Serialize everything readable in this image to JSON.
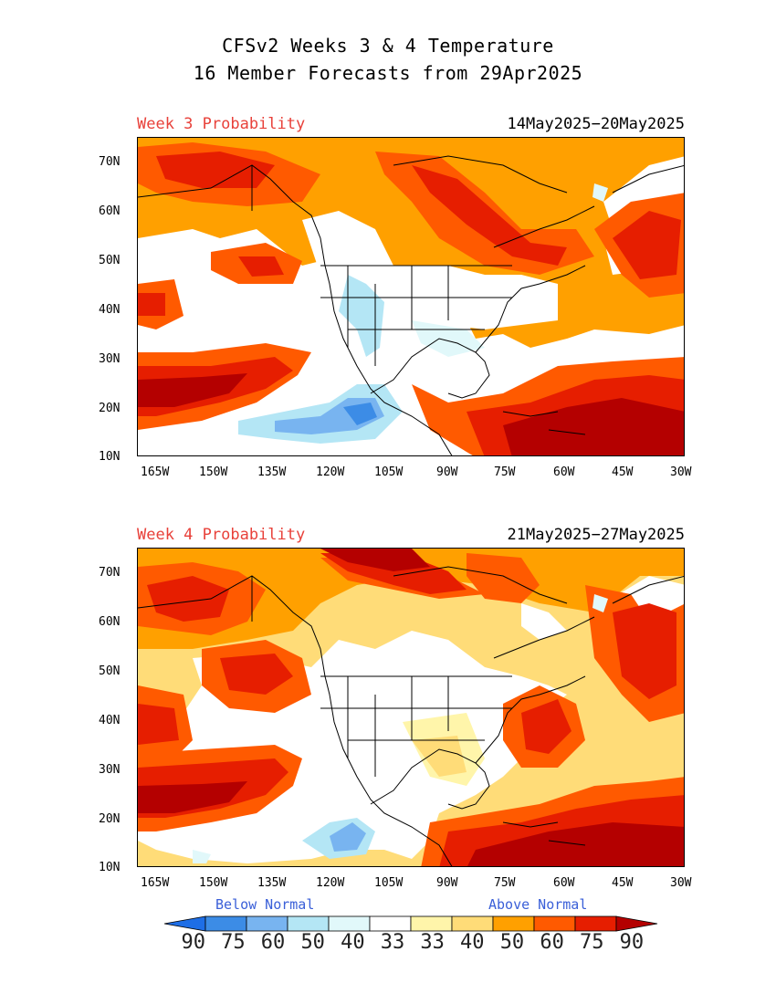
{
  "title": {
    "line1": "CFSv2 Weeks 3 & 4 Temperature",
    "line2": "16 Member Forecasts from 29Apr2025"
  },
  "panels": [
    {
      "label": "Week 3 Probability",
      "dates": "14May2025−20May2025"
    },
    {
      "label": "Week 4 Probability",
      "dates": "21May2025−27May2025"
    }
  ],
  "lat_ticks": [
    "70N",
    "60N",
    "50N",
    "40N",
    "30N",
    "20N",
    "10N"
  ],
  "lon_ticks": [
    "165W",
    "150W",
    "135W",
    "120W",
    "105W",
    "90W",
    "75W",
    "60W",
    "45W",
    "30W"
  ],
  "legend": {
    "below_label": "Below Normal",
    "above_label": "Above Normal",
    "values": [
      "90",
      "75",
      "60",
      "50",
      "40",
      "33",
      "33",
      "40",
      "50",
      "60",
      "75",
      "90"
    ],
    "colors": [
      "#1e6ee6",
      "#3c8ce6",
      "#78b4f0",
      "#b4e6f5",
      "#e1f8fa",
      "#ffffff",
      "#fff5aa",
      "#ffdc78",
      "#ffa000",
      "#ff5a00",
      "#e61e00",
      "#b40000"
    ]
  }
}
